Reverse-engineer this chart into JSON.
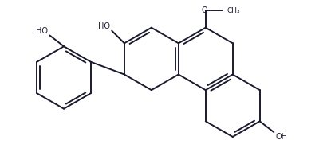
{
  "bg_color": "#ffffff",
  "line_color": "#1a1a2e",
  "lw": 1.4,
  "dbo": 0.1,
  "shrink": 0.14,
  "fs": 7.0,
  "xlim": [
    -0.3,
    8.8
  ],
  "ylim": [
    -2.4,
    2.4
  ]
}
